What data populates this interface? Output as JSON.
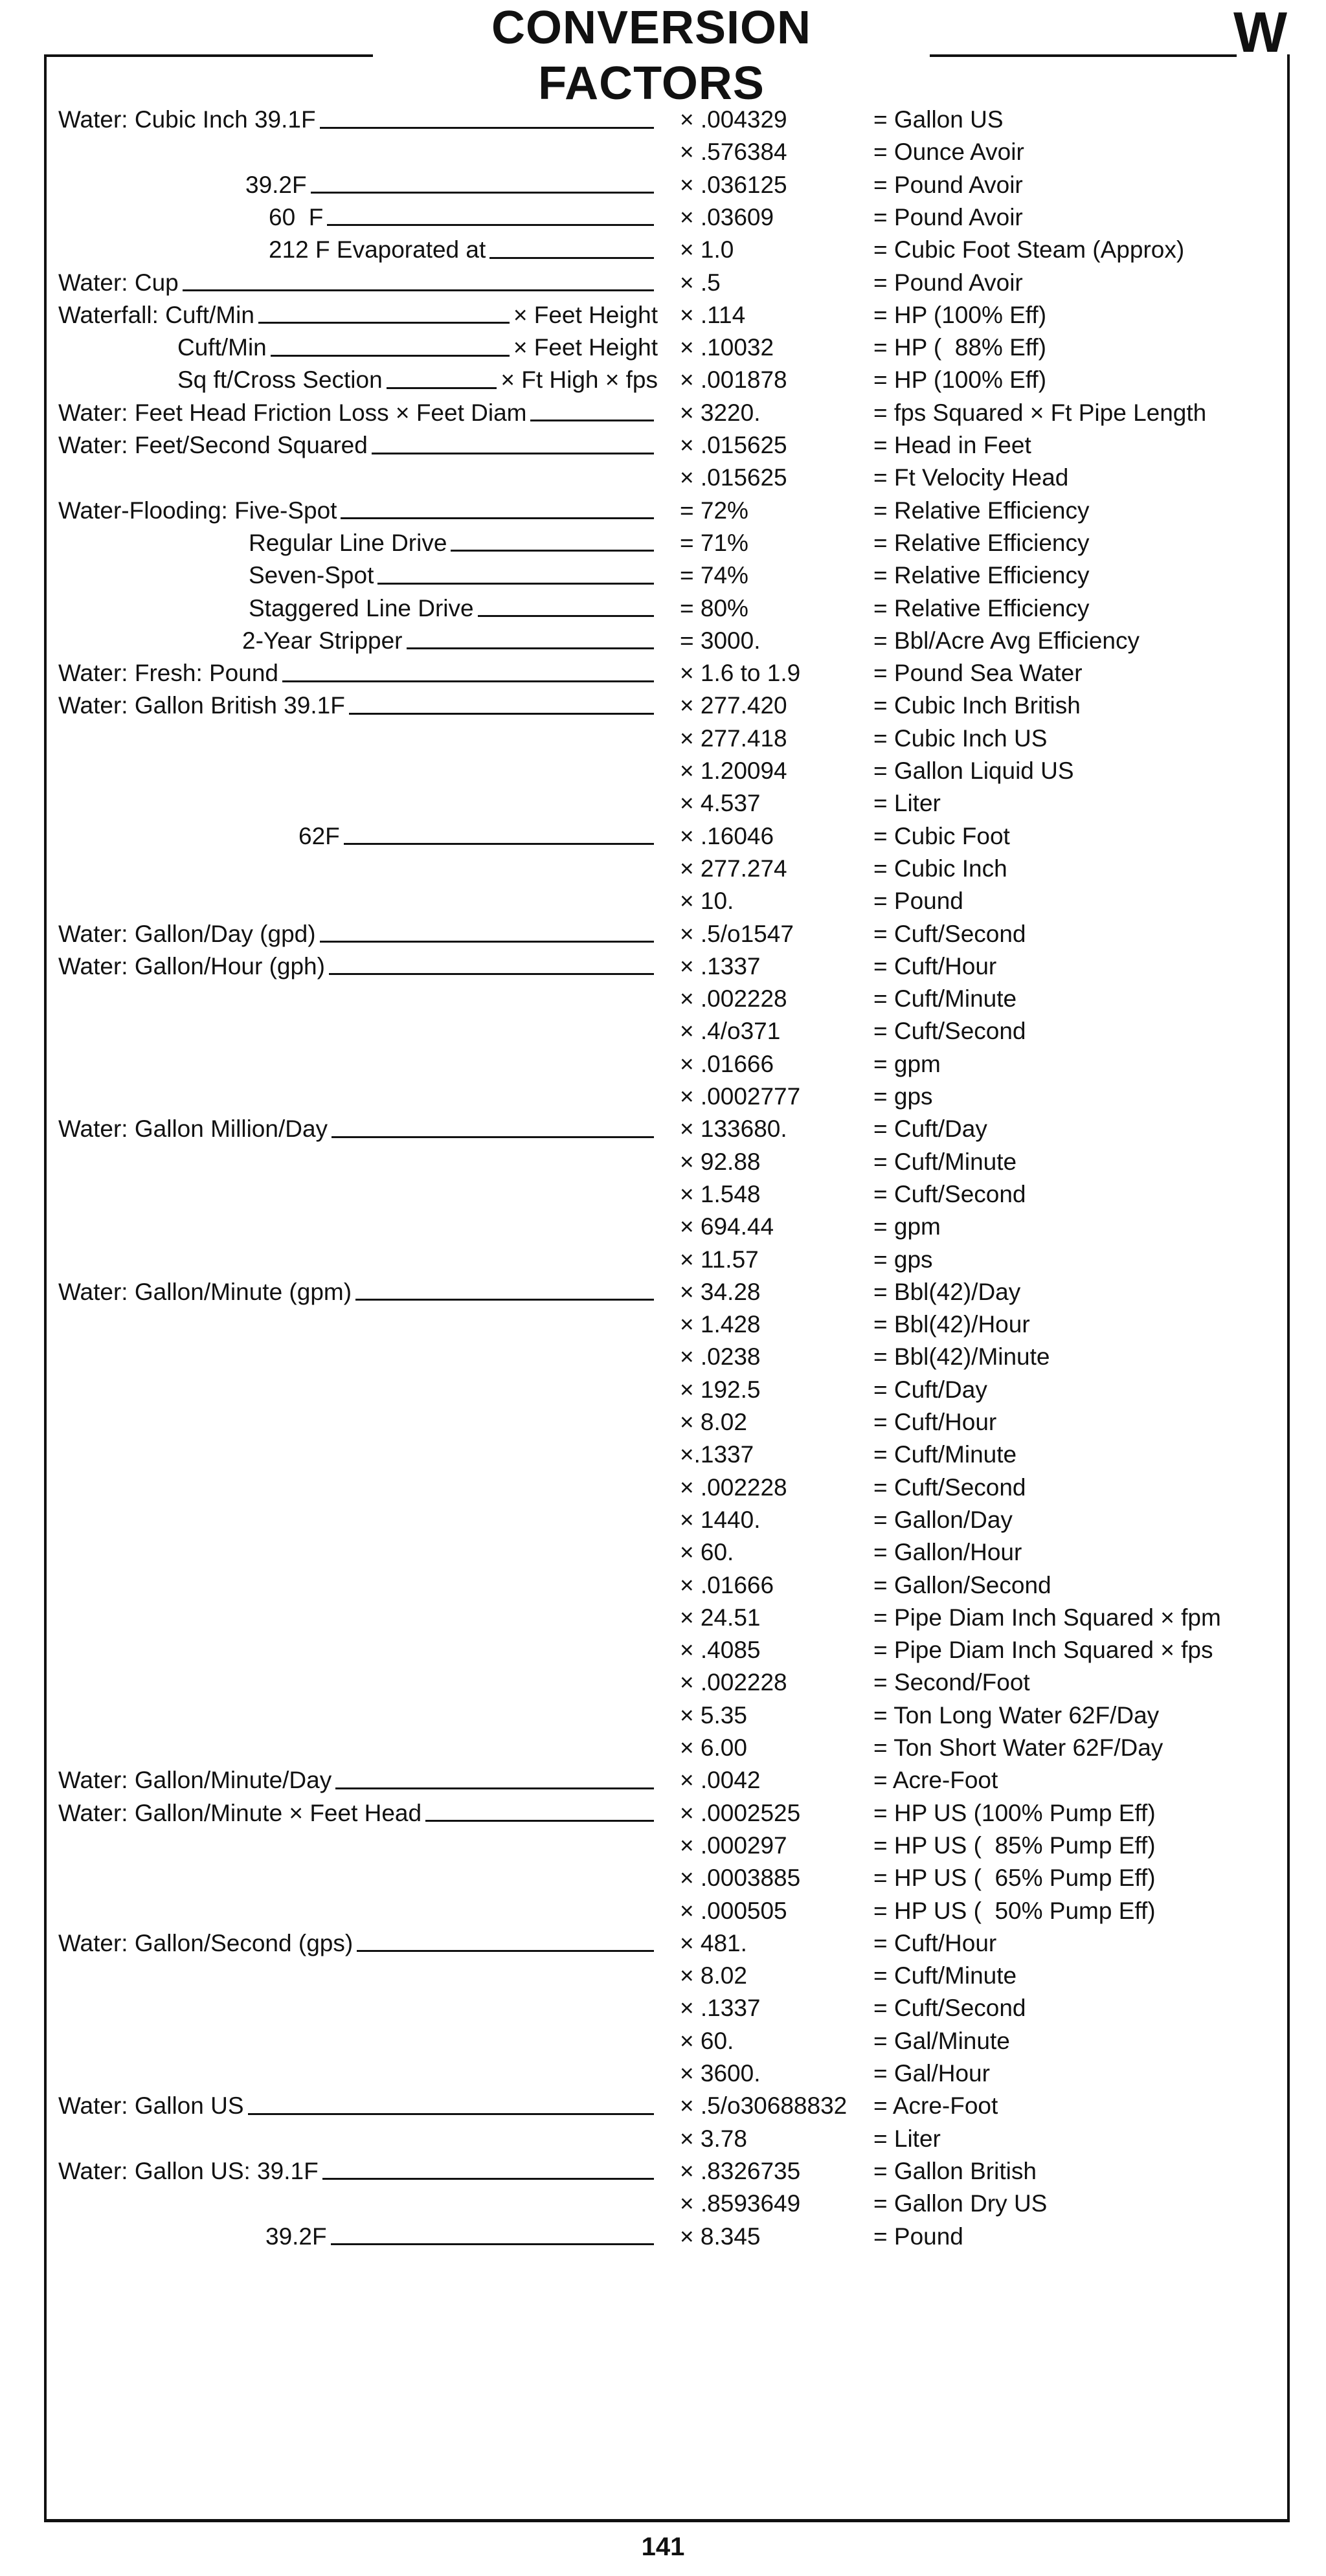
{
  "header": {
    "title": "CONVERSION FACTORS",
    "section_letter": "W"
  },
  "rows": [
    {
      "label": "Water: Cubic Inch 39.1F",
      "value": "× .004329",
      "result": "= Gallon US"
    },
    {
      "label": "",
      "value": "× .576384",
      "result": "= Ounce Avoir"
    },
    {
      "label": "39.2F",
      "value": "× .036125",
      "result": "= Pound Avoir"
    },
    {
      "label": "60  F",
      "value": "× .03609",
      "result": "= Pound Avoir"
    },
    {
      "label": "212 F Evaporated at",
      "value": "× 1.0",
      "result": "= Cubic Foot Steam (Approx)"
    },
    {
      "label": "Water: Cup",
      "value": "× .5",
      "result": "= Pound Avoir"
    },
    {
      "label": "Waterfall: Cuft/Min",
      "suffix": "× Feet Height",
      "value": "× .114",
      "result": "= HP (100% Eff)"
    },
    {
      "label": "Cuft/Min",
      "suffix": "× Feet Height",
      "value": "× .10032",
      "result": "= HP (  88% Eff)"
    },
    {
      "label": "Sq ft/Cross Section",
      "suffix": "× Ft High × fps",
      "value": "× .001878",
      "result": "= HP (100% Eff)"
    },
    {
      "label": "Water: Feet Head Friction Loss × Feet Diam",
      "value": "× 3220.",
      "result": "= fps Squared × Ft Pipe Length"
    },
    {
      "label": "Water: Feet/Second Squared",
      "value": "× .015625",
      "result": "= Head in Feet"
    },
    {
      "label": "",
      "value": "× .015625",
      "result": "= Ft Velocity Head"
    },
    {
      "label": "Water-Flooding: Five-Spot",
      "value": "= 72%",
      "result": "= Relative Efficiency"
    },
    {
      "label": "Regular Line Drive",
      "value": "= 71%",
      "result": "= Relative Efficiency"
    },
    {
      "label": "Seven-Spot",
      "value": "= 74%",
      "result": "= Relative Efficiency"
    },
    {
      "label": "Staggered Line Drive",
      "value": "= 80%",
      "result": "= Relative Efficiency"
    },
    {
      "label": "2-Year Stripper",
      "value": "= 3000.",
      "result": "= Bbl/Acre Avg Efficiency"
    },
    {
      "label": "Water: Fresh: Pound",
      "value": "× 1.6 to 1.9",
      "result": "= Pound Sea Water"
    },
    {
      "label": "Water: Gallon British 39.1F",
      "value": "× 277.420",
      "result": "= Cubic Inch British"
    },
    {
      "label": "",
      "value": "× 277.418",
      "result": "= Cubic Inch US"
    },
    {
      "label": "",
      "value": "× 1.20094",
      "result": "= Gallon Liquid US"
    },
    {
      "label": "",
      "value": "× 4.537",
      "result": "= Liter"
    },
    {
      "label": "62F",
      "value": "× .16046",
      "result": "= Cubic Foot"
    },
    {
      "label": "",
      "value": "× 277.274",
      "result": "= Cubic Inch"
    },
    {
      "label": "",
      "value": "× 10.",
      "result": "= Pound"
    },
    {
      "label": "Water: Gallon/Day (gpd)",
      "value": "× .5/o1547",
      "result": "= Cuft/Second"
    },
    {
      "label": "Water: Gallon/Hour (gph)",
      "value": "× .1337",
      "result": "= Cuft/Hour"
    },
    {
      "label": "",
      "value": "× .002228",
      "result": "= Cuft/Minute"
    },
    {
      "label": "",
      "value": "× .4/o371",
      "result": "= Cuft/Second"
    },
    {
      "label": "",
      "value": "× .01666",
      "result": "= gpm"
    },
    {
      "label": "",
      "value": "× .0002777",
      "result": "= gps"
    },
    {
      "label": "Water: Gallon Million/Day",
      "value": "× 133680.",
      "result": "= Cuft/Day"
    },
    {
      "label": "",
      "value": "× 92.88",
      "result": "= Cuft/Minute"
    },
    {
      "label": "",
      "value": "× 1.548",
      "result": "= Cuft/Second"
    },
    {
      "label": "",
      "value": "× 694.44",
      "result": "= gpm"
    },
    {
      "label": "",
      "value": "× 11.57",
      "result": "= gps"
    },
    {
      "label": "Water: Gallon/Minute (gpm)",
      "value": "× 34.28",
      "result": "= Bbl(42)/Day"
    },
    {
      "label": "",
      "value": "× 1.428",
      "result": "= Bbl(42)/Hour"
    },
    {
      "label": "",
      "value": "× .0238",
      "result": "= Bbl(42)/Minute"
    },
    {
      "label": "",
      "value": "× 192.5",
      "result": "= Cuft/Day"
    },
    {
      "label": "",
      "value": "× 8.02",
      "result": "= Cuft/Hour"
    },
    {
      "label": "",
      "value": "×.1337",
      "result": "= Cuft/Minute"
    },
    {
      "label": "",
      "value": "× .002228",
      "result": "= Cuft/Second"
    },
    {
      "label": "",
      "value": "× 1440.",
      "result": "= Gallon/Day"
    },
    {
      "label": "",
      "value": "× 60.",
      "result": "= Gallon/Hour"
    },
    {
      "label": "",
      "value": "× .01666",
      "result": "= Gallon/Second"
    },
    {
      "label": "",
      "value": "× 24.51",
      "result": "= Pipe Diam Inch Squared × fpm"
    },
    {
      "label": "",
      "value": "× .4085",
      "result": "= Pipe Diam Inch Squared × fps"
    },
    {
      "label": "",
      "value": "× .002228",
      "result": "= Second/Foot"
    },
    {
      "label": "",
      "value": "× 5.35",
      "result": "= Ton Long Water 62F/Day"
    },
    {
      "label": "",
      "value": "× 6.00",
      "result": "= Ton Short Water 62F/Day"
    },
    {
      "label": "Water: Gallon/Minute/Day",
      "value": "× .0042",
      "result": "= Acre-Foot"
    },
    {
      "label": "Water: Gallon/Minute × Feet Head",
      "value": "× .0002525",
      "result": "= HP US (100% Pump Eff)"
    },
    {
      "label": "",
      "value": "× .000297",
      "result": "= HP US (  85% Pump Eff)"
    },
    {
      "label": "",
      "value": "× .0003885",
      "result": "= HP US (  65% Pump Eff)"
    },
    {
      "label": "",
      "value": "× .000505",
      "result": "= HP US (  50% Pump Eff)"
    },
    {
      "label": "Water: Gallon/Second (gps)",
      "value": "× 481.",
      "result": "= Cuft/Hour"
    },
    {
      "label": "",
      "value": "× 8.02",
      "result": "= Cuft/Minute"
    },
    {
      "label": "",
      "value": "× .1337",
      "result": "= Cuft/Second"
    },
    {
      "label": "",
      "value": "× 60.",
      "result": "= Gal/Minute"
    },
    {
      "label": "",
      "value": "× 3600.",
      "result": "= Gal/Hour"
    },
    {
      "label": "Water: Gallon US",
      "value": "× .5/o30688832",
      "result": "= Acre-Foot"
    },
    {
      "label": "",
      "value": "× 3.78",
      "result": "= Liter"
    },
    {
      "label": "Water: Gallon US: 39.1F",
      "value": "× .8326735",
      "result": "= Gallon British"
    },
    {
      "label": "",
      "value": "× .8593649",
      "result": "= Gallon Dry US"
    },
    {
      "label": "39.2F",
      "value": "× 8.345",
      "result": "= Pound"
    }
  ],
  "footer": {
    "page_number": "141"
  }
}
